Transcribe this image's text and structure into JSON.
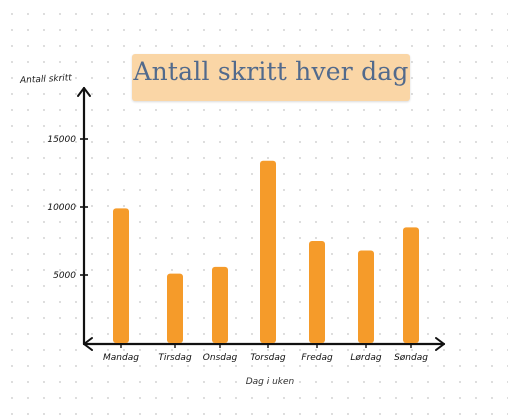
{
  "chart_data": {
    "type": "bar",
    "title": "Antall skritt hver dag",
    "xlabel": "Dag i uken",
    "ylabel": "Antall skritt",
    "categories": [
      "Mandag",
      "Tirsdag",
      "Onsdag",
      "Torsdag",
      "Fredag",
      "Lørdag",
      "Søndag"
    ],
    "values": [
      9900,
      5100,
      5600,
      13400,
      7500,
      6800,
      8500
    ],
    "ylim": [
      0,
      17500
    ],
    "yticks": [
      5000,
      10000,
      15000
    ],
    "bar_color": "#f59b2a",
    "grid": false,
    "legend": "none"
  }
}
